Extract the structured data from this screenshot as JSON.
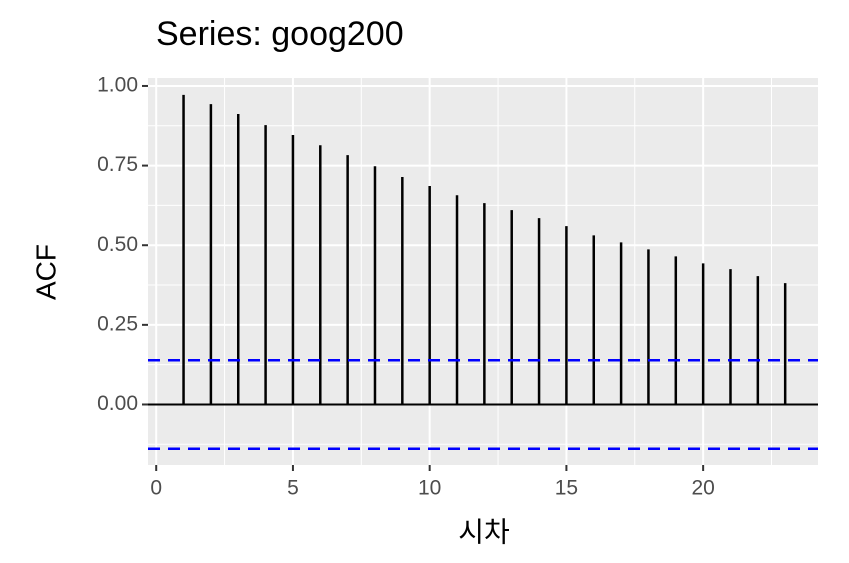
{
  "chart_data": {
    "type": "acf",
    "title": "Series: goog200",
    "xlabel": "시차",
    "ylabel": "ACF",
    "x": [
      1,
      2,
      3,
      4,
      5,
      6,
      7,
      8,
      9,
      10,
      11,
      12,
      13,
      14,
      15,
      16,
      17,
      18,
      19,
      20,
      21,
      22,
      23
    ],
    "values": [
      0.972,
      0.943,
      0.912,
      0.877,
      0.846,
      0.814,
      0.783,
      0.748,
      0.714,
      0.686,
      0.657,
      0.632,
      0.61,
      0.585,
      0.56,
      0.531,
      0.509,
      0.487,
      0.465,
      0.443,
      0.425,
      0.403,
      0.381
    ],
    "color": "#000000",
    "ci": [
      0.139,
      -0.139
    ],
    "ci_color": "#0000ff",
    "xlim": [
      -0.3,
      24.2
    ],
    "ylim": [
      -0.19,
      1.025
    ],
    "xticks": [
      0,
      5,
      10,
      15,
      20
    ],
    "yticks": [
      {
        "value": 0,
        "label": "0.00"
      },
      {
        "value": 0.25,
        "label": "0.25"
      },
      {
        "value": 0.5,
        "label": "0.50"
      },
      {
        "value": 0.75,
        "label": "0.75"
      },
      {
        "value": 1,
        "label": "1.00"
      }
    ],
    "grid": true,
    "minor_grid": true
  }
}
